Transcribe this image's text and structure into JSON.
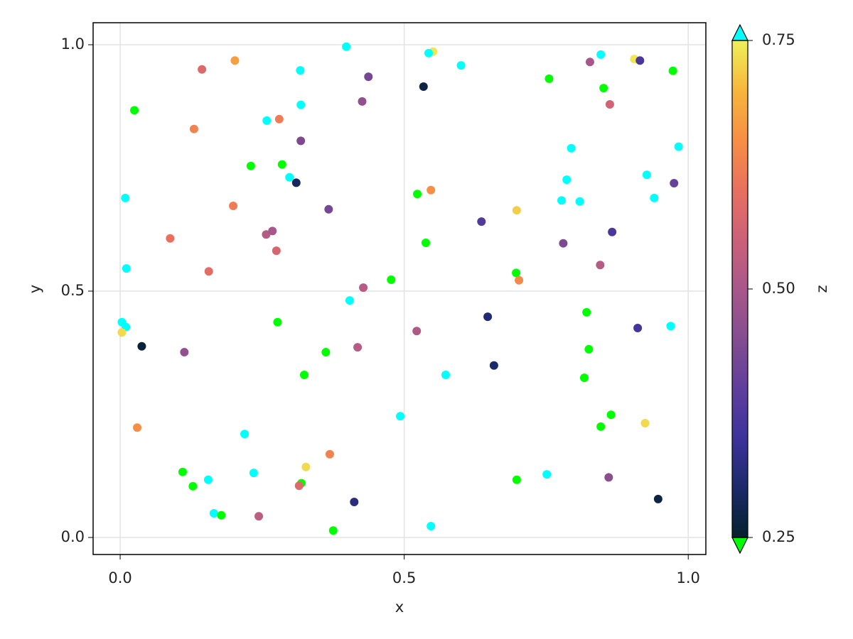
{
  "chart_data": {
    "type": "scatter",
    "xlabel": "x",
    "ylabel": "y",
    "xlim": [
      -0.0476,
      1.031
    ],
    "ylim": [
      -0.0346,
      1.0447
    ],
    "xticks": [
      {
        "value": 0,
        "label": "0.0"
      },
      0.5,
      {
        "value": 1,
        "label": "1.0"
      }
    ],
    "yticks": [
      {
        "value": 0,
        "label": "0.0"
      },
      0.5,
      {
        "value": 1,
        "label": "1.0"
      }
    ],
    "grid": true,
    "x": [
      0.398,
      0.551,
      0.543,
      0.202,
      0.144,
      0.317,
      0.437,
      0.6,
      0.534,
      0.426,
      0.318,
      0.025,
      0.258,
      0.28,
      0.13,
      0.318,
      0.23,
      0.285,
      0.298,
      0.31,
      0.009,
      0.199,
      0.367,
      0.257,
      0.268,
      0.088,
      0.275,
      0.011,
      0.156,
      0.428,
      0.477,
      0.404,
      0.003,
      0.01,
      0.003,
      0.277,
      0.038,
      0.113,
      0.362,
      0.418,
      0.324,
      0.522,
      0.493,
      0.573,
      0.03,
      0.219,
      0.369,
      0.327,
      0.11,
      0.235,
      0.128,
      0.155,
      0.319,
      0.315,
      0.412,
      0.165,
      0.178,
      0.244,
      0.375,
      0.547,
      0.523,
      0.547,
      0.538,
      0.698,
      0.636,
      0.697,
      0.702,
      0.647,
      0.658,
      0.698,
      0.751,
      0.755,
      0.827,
      0.846,
      0.851,
      0.905,
      0.915,
      0.973,
      0.862,
      0.794,
      0.983,
      0.927,
      0.975,
      0.786,
      0.777,
      0.809,
      0.94,
      0.866,
      0.78,
      0.845,
      0.821,
      0.911,
      0.969,
      0.825,
      0.817,
      0.864,
      0.846,
      0.924,
      0.86,
      0.947
    ],
    "values": [
      0.996,
      0.986,
      0.983,
      0.968,
      0.95,
      0.948,
      0.935,
      0.958,
      0.915,
      0.885,
      0.878,
      0.867,
      0.846,
      0.849,
      0.829,
      0.805,
      0.754,
      0.757,
      0.731,
      0.72,
      0.689,
      0.673,
      0.666,
      0.615,
      0.622,
      0.607,
      0.582,
      0.546,
      0.54,
      0.507,
      0.523,
      0.481,
      0.437,
      0.427,
      0.416,
      0.437,
      0.388,
      0.376,
      0.376,
      0.386,
      0.33,
      0.419,
      0.246,
      0.33,
      0.223,
      0.21,
      0.169,
      0.143,
      0.133,
      0.131,
      0.104,
      0.117,
      0.11,
      0.105,
      0.072,
      0.049,
      0.045,
      0.043,
      0.014,
      0.023,
      0.697,
      0.705,
      0.598,
      0.664,
      0.641,
      0.537,
      0.522,
      0.448,
      0.349,
      0.117,
      0.128,
      0.931,
      0.965,
      0.98,
      0.912,
      0.971,
      0.968,
      0.947,
      0.879,
      0.79,
      0.793,
      0.736,
      0.719,
      0.726,
      0.684,
      0.682,
      0.689,
      0.62,
      0.597,
      0.553,
      0.457,
      0.425,
      0.429,
      0.382,
      0.324,
      0.249,
      0.225,
      0.232,
      0.122,
      0.078
    ],
    "z": [
      0.85,
      0.74,
      0.85,
      0.67,
      0.58,
      0.85,
      0.43,
      0.85,
      0.27,
      0.47,
      0.85,
      0.15,
      0.85,
      0.62,
      0.63,
      0.44,
      0.15,
      0.15,
      0.85,
      0.29,
      0.85,
      0.62,
      0.43,
      0.52,
      0.5,
      0.6,
      0.57,
      0.85,
      0.59,
      0.52,
      0.15,
      0.85,
      0.85,
      0.85,
      0.73,
      0.15,
      0.26,
      0.47,
      0.15,
      0.52,
      0.15,
      0.51,
      0.85,
      0.85,
      0.65,
      0.85,
      0.63,
      0.73,
      0.15,
      0.85,
      0.15,
      0.85,
      0.15,
      0.58,
      0.32,
      0.85,
      0.15,
      0.53,
      0.15,
      0.85,
      0.15,
      0.65,
      0.15,
      0.72,
      0.38,
      0.15,
      0.64,
      0.31,
      0.3,
      0.15,
      0.85,
      0.15,
      0.5,
      0.85,
      0.15,
      0.74,
      0.37,
      0.15,
      0.56,
      0.85,
      0.85,
      0.85,
      0.41,
      0.85,
      0.85,
      0.85,
      0.85,
      0.37,
      0.44,
      0.52,
      0.15,
      0.36,
      0.85,
      0.15,
      0.15,
      0.15,
      0.15,
      0.73,
      0.46,
      0.27
    ],
    "colorbar": {
      "label": "z",
      "limits": [
        0.25,
        0.75
      ],
      "ticks": [
        {
          "value": 0.25,
          "label": "0.25"
        },
        {
          "value": 0.5,
          "label": "0.50"
        },
        {
          "value": 0.75,
          "label": "0.75"
        }
      ],
      "colormap": [
        "#04202c",
        "#1b2a6a",
        "#3d329b",
        "#5f3f9c",
        "#844d90",
        "#a8578a",
        "#cb6179",
        "#e8705f",
        "#f68f45",
        "#f7b63c",
        "#eef15a"
      ],
      "lowclip": "#00ff00",
      "highclip": "#00ffff"
    }
  }
}
